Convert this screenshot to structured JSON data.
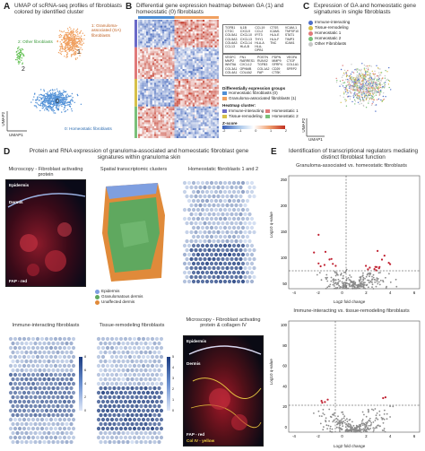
{
  "panelA": {
    "letter": "A",
    "title": "UMAP of scRNA-seq profiles of fibroblasts colored by identified cluster",
    "label1": "1: Granuloma-associated (GA) fibroblasts",
    "label2": "2: Other fibroblasts",
    "label0": "0: Homeostatic fibroblasts",
    "num0": "0",
    "num1": "1",
    "num2": "2",
    "axis_x": "UMAP1",
    "axis_y": "UMAP2",
    "colors": {
      "c0": "#4f8fd6",
      "c1": "#f0a060",
      "c2": "#5fbf4f"
    }
  },
  "panelB": {
    "letter": "B",
    "title": "Differential gene expression heatmap between GA (1) and homeostatic (0) fibroblasts",
    "genes_top": [
      "TGFB1",
      "IL1B",
      "CCL19",
      "CTSS",
      "VCAM-1",
      "CTGC",
      "CXCL9",
      "CCL2",
      "ICAM1",
      "TNFSF10",
      "COL5A1",
      "CXCL10",
      "IFIT3",
      "HLA-E",
      "STAT1",
      "COL5A3",
      "CXCL13",
      "THY1",
      "HLA-F",
      "TIMP3",
      "COL6A3",
      "CXCL14",
      "HLA-A",
      "TNC",
      "ICAM1",
      "CCL13",
      "HLA-B",
      "HLA-DPB1"
    ],
    "genes_bottom": [
      "VEGFC",
      "FN1",
      "POSTN",
      "PDPN",
      "VEGFA",
      "MMP2",
      "RARRES1",
      "RUNX2",
      "MMP9",
      "CTGF",
      "WNT5A",
      "CXCL12",
      "TGFB3",
      "SFRP4",
      "COL1A1",
      "COL3A1",
      "GPNMB",
      "COL1A2",
      "CD29",
      "SFRP2",
      "COL4A1",
      "COL4A2",
      "FAP",
      "CTSK"
    ],
    "legend_groups_title": "Differentially expression groups",
    "groups": [
      "Homeostatic fibroblasts (0)",
      "Granuloma-associated fibroblasts (1)"
    ],
    "heatmap_cluster_title": "Heatmap cluster:",
    "clusters": [
      "Immune-interacting",
      "Homeostatic 1",
      "Tissue-remodeling",
      "Homeostatic 2"
    ],
    "zscore_title": "Z-score",
    "zscore_ticks": [
      "-2",
      "-1",
      "0",
      "1",
      "2"
    ],
    "colors": {
      "homeostatic": "#4f8fd6",
      "ga": "#f0a060",
      "immune": "#6a6ac8",
      "tissue": "#d6c04a",
      "homeo1": "#e07a7a",
      "homeo2": "#7ac07a"
    }
  },
  "panelC": {
    "letter": "C",
    "title": "Expression of GA and homeostatic gene signatures in single fibroblasts",
    "legend": [
      "Immune-interacting",
      "Tissue-remodeling",
      "Homeostatic 1",
      "Homeostatic 2",
      "Other Fibroblasts"
    ],
    "colors": [
      "#4f6fc8",
      "#d6c04a",
      "#e07a7a",
      "#7ac07a",
      "#c8c8c8"
    ],
    "axis_x": "UMAP1",
    "axis_y": "UMAP2"
  },
  "panelD": {
    "letter": "D",
    "title": "Protein and RNA expression of granuloma-associated and homeostatic fibroblast gene signatures within granuloma skin",
    "sub1": "Microscopy - Fibroblast activating protein",
    "sub2": "Spatial transcriptomic clusters",
    "sub3": "Homeostatic fibroblasts 1 and 2",
    "sub4": "Immune-interacting fibroblasts",
    "sub5": "Tissue-remodeling fibroblasts",
    "sub6": "Microscopy - Fibroblast activating protein & collagen IV",
    "epidermis": "Epidermis",
    "dermis": "Dermis",
    "fap_red": "FAP - red",
    "col_yellow": "Col IV - yellow",
    "st_legend": [
      "Epidermis",
      "Granulomatous dermis",
      "Unaffected dermis"
    ],
    "st_colors": [
      "#7f9fe0",
      "#5fa85f",
      "#e08a3a"
    ],
    "scale_ticks": [
      "8",
      "6",
      "4",
      "2",
      "0"
    ],
    "scale_ticks2": [
      "5",
      "4",
      "3",
      "2",
      "1",
      "0"
    ]
  },
  "panelE": {
    "letter": "E",
    "title": "Identification of transcriptional regulators mediating distinct fibroblast function",
    "plot1_title": "Granuloma-associated vs. homeostatic fibroblasts",
    "plot2_title": "Immune-interacting vs. tissue-remodeling fibroblasts",
    "xlabel": "Log2 fold change",
    "ylabel": "Log10 q-value",
    "plot1_yticks": [
      "250",
      "200",
      "150",
      "100",
      "50"
    ],
    "plot1_xticks": [
      "-4",
      "-2",
      "0",
      "2",
      "4",
      "6"
    ],
    "plot2_yticks": [
      "100",
      "80",
      "60",
      "40",
      "20",
      "0"
    ],
    "plot2_xticks": [
      "-4",
      "-2",
      "0",
      "2",
      "4",
      "6"
    ]
  }
}
